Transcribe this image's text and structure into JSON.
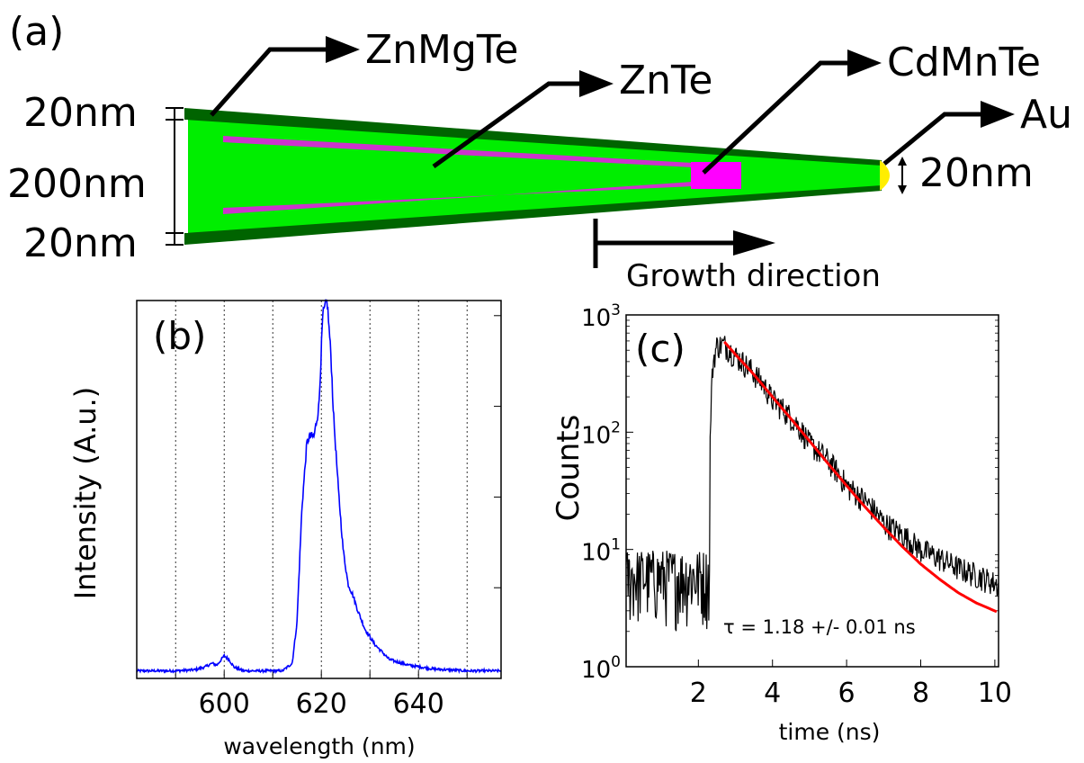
{
  "panel_a": {
    "label": "(a)",
    "callouts": {
      "znmgte": "ZnMgTe",
      "znte": "ZnTe",
      "cdmnte": "CdMnTe",
      "au": "Au"
    },
    "dims": {
      "top_shell": "20nm",
      "core": "200nm",
      "bottom_shell": "20nm",
      "tip": "20nm"
    },
    "growth_label": "Growth direction",
    "colors": {
      "shell": "#006400",
      "core": "#00ee00",
      "znte_line": "#cc33cc",
      "cdmnte": "#ff00ff",
      "au": "#ffee00"
    }
  },
  "chart_data": [
    {
      "panel_label": "(b)",
      "type": "line",
      "xlabel": "wavelength (nm)",
      "ylabel": "Intensity (A.u.)",
      "xlim": [
        582,
        657
      ],
      "ylim": [
        0,
        1.0
      ],
      "xticks": [
        600,
        620,
        640
      ],
      "xtick_labels": [
        "600",
        "620",
        "640"
      ],
      "grid": "vertical dotted",
      "series": [
        {
          "color": "#0000ff",
          "x": [
            582,
            590,
            594,
            596,
            597.5,
            598.5,
            600,
            601,
            602,
            604,
            607,
            612,
            614,
            615,
            616,
            617,
            617.5,
            618.5,
            619.5,
            620.3,
            621.2,
            622,
            622.5,
            623.5,
            624.5,
            625.5,
            626.5,
            627.5,
            629,
            631,
            634,
            638,
            643,
            650,
            657
          ],
          "y": [
            0.02,
            0.02,
            0.023,
            0.03,
            0.04,
            0.035,
            0.06,
            0.05,
            0.03,
            0.02,
            0.02,
            0.02,
            0.04,
            0.15,
            0.45,
            0.62,
            0.64,
            0.64,
            0.72,
            0.96,
            1.0,
            0.85,
            0.7,
            0.5,
            0.34,
            0.25,
            0.22,
            0.18,
            0.13,
            0.09,
            0.05,
            0.035,
            0.025,
            0.02,
            0.02
          ]
        }
      ]
    },
    {
      "panel_label": "(c)",
      "type": "line",
      "xlabel": "time (ns)",
      "ylabel": "Counts",
      "xlim": [
        0.05,
        10.1
      ],
      "ylim": [
        1,
        1000
      ],
      "yscale": "log",
      "xticks": [
        2,
        4,
        6,
        8,
        10
      ],
      "xtick_labels": [
        "2",
        "4",
        "6",
        "8",
        "10"
      ],
      "ytick_labels": [
        {
          "base": "10",
          "exp": "0"
        },
        {
          "base": "10",
          "exp": "1"
        },
        {
          "base": "10",
          "exp": "2"
        },
        {
          "base": "10",
          "exp": "3"
        }
      ],
      "annotation": "τ = 1.18 +/- 0.01 ns",
      "series": [
        {
          "role": "data",
          "color": "#000000",
          "x": [
            0.05,
            2.2,
            2.3,
            2.4,
            2.5,
            2.7,
            3,
            4,
            5,
            6,
            7,
            8,
            9,
            10.1
          ],
          "y": [
            5,
            5,
            10,
            400,
            550,
            560,
            450,
            190,
            80,
            35,
            17,
            10,
            7,
            5
          ],
          "noise_floor_region": [
            0.05,
            2.3
          ],
          "noise_range": [
            2,
            10
          ]
        },
        {
          "role": "fit",
          "color": "#ff0000",
          "x": [
            2.7,
            3,
            3.5,
            4,
            4.5,
            5,
            5.5,
            6,
            6.5,
            7,
            7.5,
            8,
            8.5,
            9,
            9.5,
            10.1
          ],
          "y": [
            590,
            460,
            310,
            200,
            130,
            84,
            54,
            35,
            23,
            15.5,
            10.6,
            7.5,
            5.6,
            4.3,
            3.5,
            2.9
          ]
        }
      ]
    }
  ]
}
